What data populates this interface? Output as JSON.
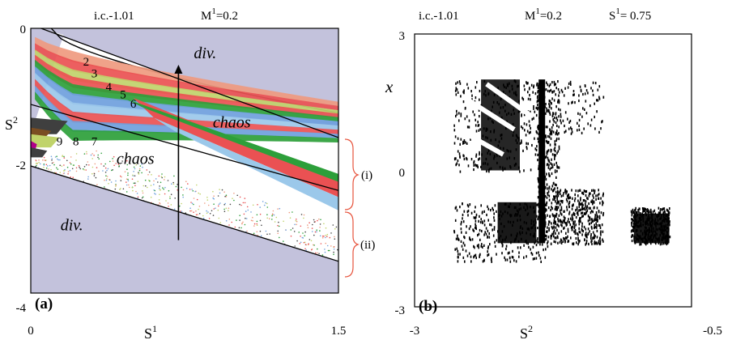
{
  "chart_data": [
    {
      "panel": "(a)",
      "type": "heatmap",
      "header": {
        "ic": "i.c.-1.01",
        "m_label": "M",
        "m_sup": "1",
        "m_value": "=0.2"
      },
      "xlabel": {
        "base": "S",
        "sup": "1"
      },
      "ylabel": {
        "base": "S",
        "sup": "2"
      },
      "xlim": [
        0,
        1.5
      ],
      "ylim": [
        -4,
        0
      ],
      "x_ticks": [
        "0",
        "1.5"
      ],
      "y_ticks": [
        "0",
        "-2",
        "-4"
      ],
      "period_labels": [
        {
          "text": "2",
          "x": 0.27,
          "y": -0.56
        },
        {
          "text": "3",
          "x": 0.31,
          "y": -0.74
        },
        {
          "text": "4",
          "x": 0.38,
          "y": -0.94
        },
        {
          "text": "5",
          "x": 0.45,
          "y": -1.06
        },
        {
          "text": "6",
          "x": 0.5,
          "y": -1.2
        },
        {
          "text": "7",
          "x": 0.31,
          "y": -1.77
        },
        {
          "text": "8",
          "x": 0.22,
          "y": -1.77
        },
        {
          "text": "9",
          "x": 0.14,
          "y": -1.77
        }
      ],
      "region_labels": [
        {
          "text": "div.",
          "x": 0.85,
          "y": -0.45
        },
        {
          "text": "chaos",
          "x": 0.98,
          "y": -1.5
        },
        {
          "text": "chaos",
          "x": 0.51,
          "y": -2.05
        },
        {
          "text": "div.",
          "x": 0.2,
          "y": -3.05
        }
      ],
      "boundary_lines": [
        [
          [
            0.05,
            0
          ],
          [
            1.5,
            -1.65
          ]
        ],
        [
          [
            0.0,
            -1.15
          ],
          [
            1.5,
            -2.45
          ]
        ],
        [
          [
            0.0,
            -2.08
          ],
          [
            1.5,
            -3.52
          ]
        ]
      ],
      "arrow": {
        "x": 0.72,
        "y_from": -3.2,
        "y_to": -0.55
      },
      "bracket_labels": [
        "(i)",
        "(ii)"
      ],
      "colors": {
        "divergence": "#c3c2dc",
        "bands": [
          "#ea5153",
          "#2d9f3a",
          "#6fa0dd",
          "#c0d36a",
          "#ef9a7f",
          "#7a4d22",
          "#3f3f3f",
          "#9bc8ea"
        ],
        "bracket": "#e7533c"
      }
    },
    {
      "panel": "(b)",
      "type": "scatter",
      "header": {
        "ic": "i.c.-1.01",
        "m_label": "M",
        "m_sup": "1",
        "m_value": "=0.2",
        "s_label": "S",
        "s_sup": "1",
        "s_value": "= 0.75"
      },
      "xlabel": {
        "base": "S",
        "sup": "2"
      },
      "ylabel": "x",
      "xlim": [
        -3,
        -0.5
      ],
      "ylim": [
        -3,
        3
      ],
      "x_ticks": [
        "-3",
        "-0.5"
      ],
      "y_ticks": [
        "3",
        "0",
        "-3"
      ],
      "attractor_x_range": [
        -2.65,
        -0.7
      ],
      "attractor_y_range": [
        -2.0,
        2.0
      ]
    }
  ]
}
